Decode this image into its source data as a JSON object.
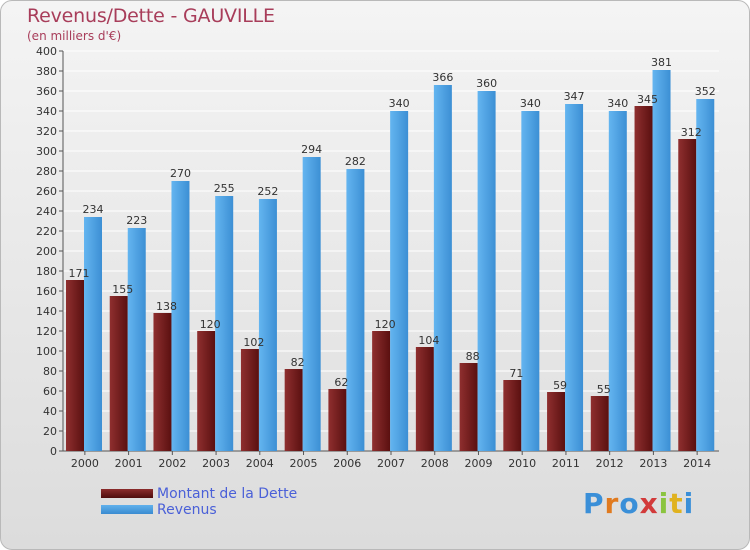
{
  "header": {
    "title": "Revenus/Dette - GAUVILLE",
    "subtitle": "(en milliers d'€)"
  },
  "legend": {
    "debt_label": "Montant de la Dette",
    "revenue_label": "Revenus"
  },
  "logo": {
    "text": "Proxiti"
  },
  "colors": {
    "debt": "#7a1e1e",
    "revenue": "#4aa3e6",
    "title": "#a83d5a",
    "legend_text": "#4a60d8"
  },
  "chart_data": {
    "type": "bar",
    "title": "Revenus/Dette - GAUVILLE",
    "subtitle": "(en milliers d'€)",
    "categories": [
      "2000",
      "2001",
      "2002",
      "2003",
      "2004",
      "2005",
      "2006",
      "2007",
      "2008",
      "2009",
      "2010",
      "2011",
      "2012",
      "2013",
      "2014"
    ],
    "series": [
      {
        "name": "Montant de la Dette",
        "values": [
          171,
          155,
          138,
          120,
          102,
          82,
          62,
          120,
          104,
          88,
          71,
          59,
          55,
          345,
          312
        ]
      },
      {
        "name": "Revenus",
        "values": [
          234,
          223,
          270,
          255,
          252,
          294,
          282,
          340,
          366,
          360,
          340,
          347,
          340,
          381,
          352
        ]
      }
    ],
    "ylim": [
      0,
      400
    ],
    "ytick_step": 20,
    "grid": true,
    "legend_position": "bottom-left"
  }
}
